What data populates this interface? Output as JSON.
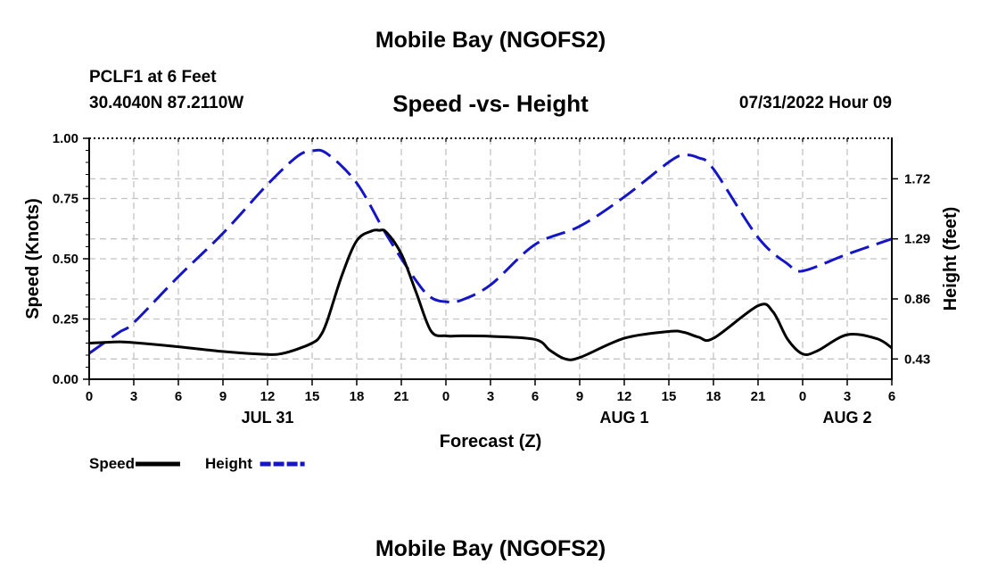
{
  "header": {
    "title": "Mobile Bay (NGOFS2)",
    "station": "PCLF1 at 6 Feet",
    "coords": "30.4040N  87.2110W",
    "subtitle": "Speed -vs- Height",
    "datetime": "07/31/2022 Hour 09",
    "footer_title": "Mobile Bay (NGOFS2)"
  },
  "chart_data": {
    "type": "line",
    "title": "Speed -vs- Height",
    "xlabel": "Forecast (Z)",
    "ylabel_left": "Speed (Knots)",
    "ylabel_right": "Height (feet)",
    "x_range": [
      0,
      54
    ],
    "x_ticks": [
      0,
      3,
      6,
      9,
      12,
      15,
      18,
      21,
      24,
      27,
      30,
      33,
      36,
      39,
      42,
      45,
      48,
      51,
      54
    ],
    "x_tick_labels": [
      "0",
      "3",
      "6",
      "9",
      "12",
      "15",
      "18",
      "21",
      "0",
      "3",
      "6",
      "9",
      "12",
      "15",
      "18",
      "21",
      "0",
      "3",
      "6"
    ],
    "date_labels": [
      {
        "x": 12,
        "label": "JUL 31"
      },
      {
        "x": 36,
        "label": "AUG 1"
      },
      {
        "x": 51,
        "label": "AUG 2"
      }
    ],
    "y_left": {
      "range": [
        0,
        1
      ],
      "ticks": [
        0,
        0.25,
        0.5,
        0.75,
        1.0
      ],
      "tick_labels": [
        "0.00",
        "0.25",
        "0.50",
        "0.75",
        "1.00"
      ]
    },
    "y_right": {
      "range": [
        0.285,
        2.01
      ],
      "ticks": [
        0.43,
        0.86,
        1.29,
        1.72
      ],
      "tick_labels": [
        "0.43",
        "0.86",
        "1.29",
        "1.72"
      ]
    },
    "series": [
      {
        "name": "Speed",
        "axis": "left",
        "color": "#000000",
        "style": "solid",
        "x": [
          0,
          1,
          2,
          3,
          6,
          9,
          12,
          13,
          14,
          15,
          15.5,
          16,
          17,
          18,
          19,
          19.5,
          20,
          21,
          22,
          23,
          24,
          25,
          27,
          30,
          31,
          32,
          33,
          36,
          39,
          40,
          41,
          42,
          45,
          46,
          47,
          48,
          49,
          51,
          53,
          54
        ],
        "y": [
          0.15,
          0.153,
          0.155,
          0.152,
          0.135,
          0.115,
          0.103,
          0.107,
          0.125,
          0.15,
          0.175,
          0.24,
          0.43,
          0.575,
          0.615,
          0.618,
          0.61,
          0.52,
          0.36,
          0.2,
          0.18,
          0.18,
          0.178,
          0.165,
          0.12,
          0.085,
          0.09,
          0.17,
          0.198,
          0.195,
          0.175,
          0.17,
          0.305,
          0.28,
          0.165,
          0.105,
          0.118,
          0.185,
          0.168,
          0.13
        ]
      },
      {
        "name": "Height",
        "axis": "right",
        "color": "#1515c8",
        "style": "dashed",
        "x": [
          0,
          2,
          3,
          6,
          9,
          12,
          14,
          15,
          16,
          18,
          20,
          22,
          23,
          24,
          25,
          27,
          30,
          33,
          36,
          39,
          40,
          41,
          42,
          45,
          47,
          48,
          51,
          54
        ],
        "y": [
          0.47,
          0.62,
          0.69,
          1.02,
          1.33,
          1.68,
          1.88,
          1.92,
          1.9,
          1.69,
          1.32,
          0.99,
          0.87,
          0.84,
          0.85,
          0.96,
          1.25,
          1.38,
          1.59,
          1.84,
          1.89,
          1.87,
          1.79,
          1.3,
          1.11,
          1.06,
          1.18,
          1.29
        ]
      }
    ],
    "legend": {
      "placement": "bottom-left",
      "items": [
        {
          "label": "Speed",
          "color": "#000000",
          "style": "solid"
        },
        {
          "label": "Height",
          "color": "#1515c8",
          "style": "dashed"
        }
      ]
    },
    "grid": true
  }
}
